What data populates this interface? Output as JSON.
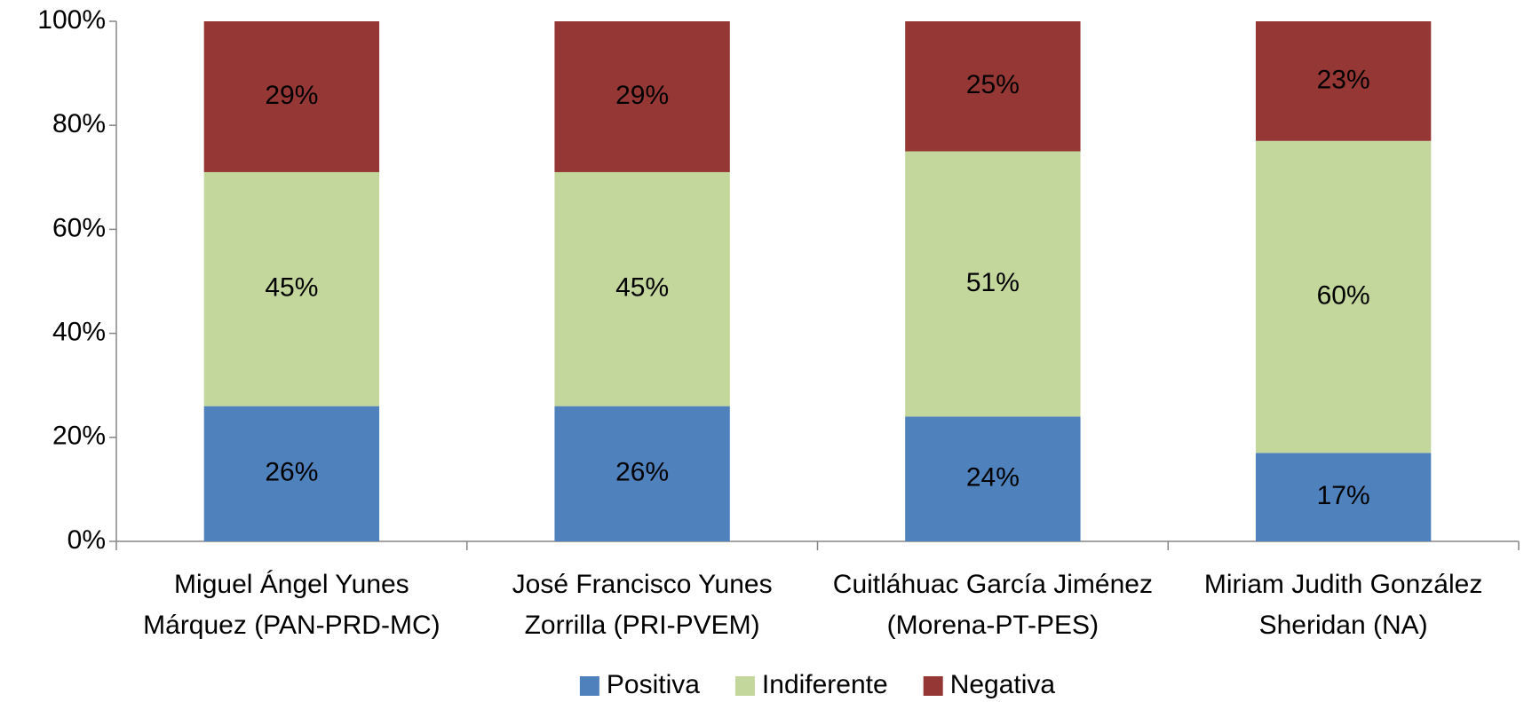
{
  "chart_data": {
    "type": "stacked_bar",
    "categories": [
      "Miguel Ángel Yunes Márquez (PAN-PRD-MC)",
      "José Francisco Yunes Zorrilla (PRI-PVEM)",
      "Cuitláhuac García Jiménez (Morena-PT-PES)",
      "Miriam Judith González Sheridan (NA)"
    ],
    "series": [
      {
        "name": "Positiva",
        "color": "#4f81bd",
        "values": [
          26,
          26,
          24,
          17
        ],
        "value_labels": [
          "26%",
          "26%",
          "24%",
          "17%"
        ]
      },
      {
        "name": "Indiferente",
        "color": "#c3d69b",
        "values": [
          45,
          45,
          51,
          60
        ],
        "value_labels": [
          "45%",
          "45%",
          "51%",
          "60%"
        ]
      },
      {
        "name": "Negativa",
        "color": "#953735",
        "values": [
          29,
          29,
          25,
          23
        ],
        "value_labels": [
          "29%",
          "29%",
          "25%",
          "23%"
        ]
      }
    ],
    "ylim": [
      0,
      100
    ],
    "yticks": [
      {
        "value": 0,
        "label": "0%"
      },
      {
        "value": 20,
        "label": "20%"
      },
      {
        "value": 40,
        "label": "40%"
      },
      {
        "value": 60,
        "label": "60%"
      },
      {
        "value": 80,
        "label": "80%"
      },
      {
        "value": 100,
        "label": "100%"
      }
    ],
    "grid": false,
    "legend": "bottom"
  }
}
